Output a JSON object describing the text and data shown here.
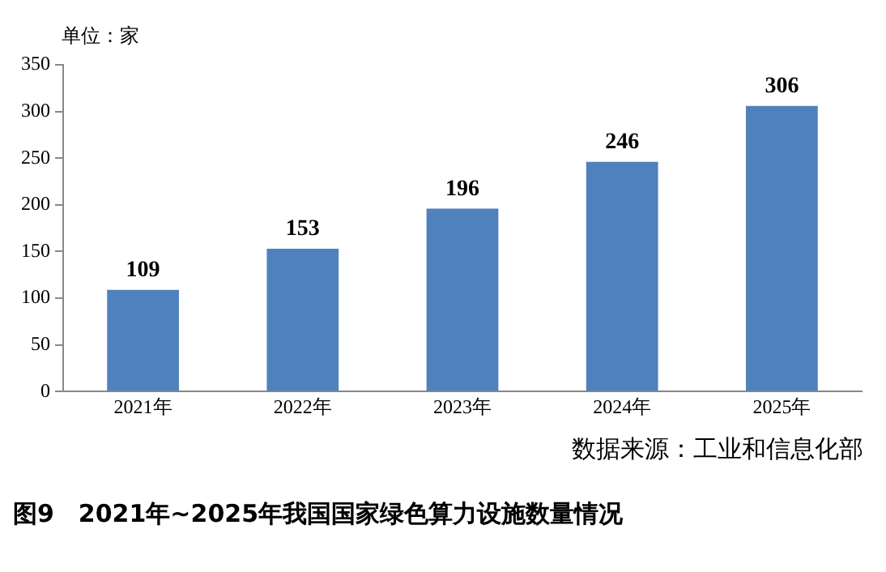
{
  "chart_data": {
    "type": "bar",
    "title": "图9　2021年~2025年我国国家绿色算力设施数量情况",
    "ylabel": "单位：家",
    "categories": [
      "2021年",
      "2022年",
      "2023年",
      "2024年",
      "2025年"
    ],
    "values": [
      109,
      153,
      196,
      246,
      306
    ],
    "color": "#4f81bd",
    "ylim": [
      0,
      350
    ],
    "yticks": [
      0,
      50,
      100,
      150,
      200,
      250,
      300,
      350
    ],
    "grid": false,
    "data_labels": true,
    "annotations": [
      "数据来源：工业和信息化部"
    ]
  }
}
